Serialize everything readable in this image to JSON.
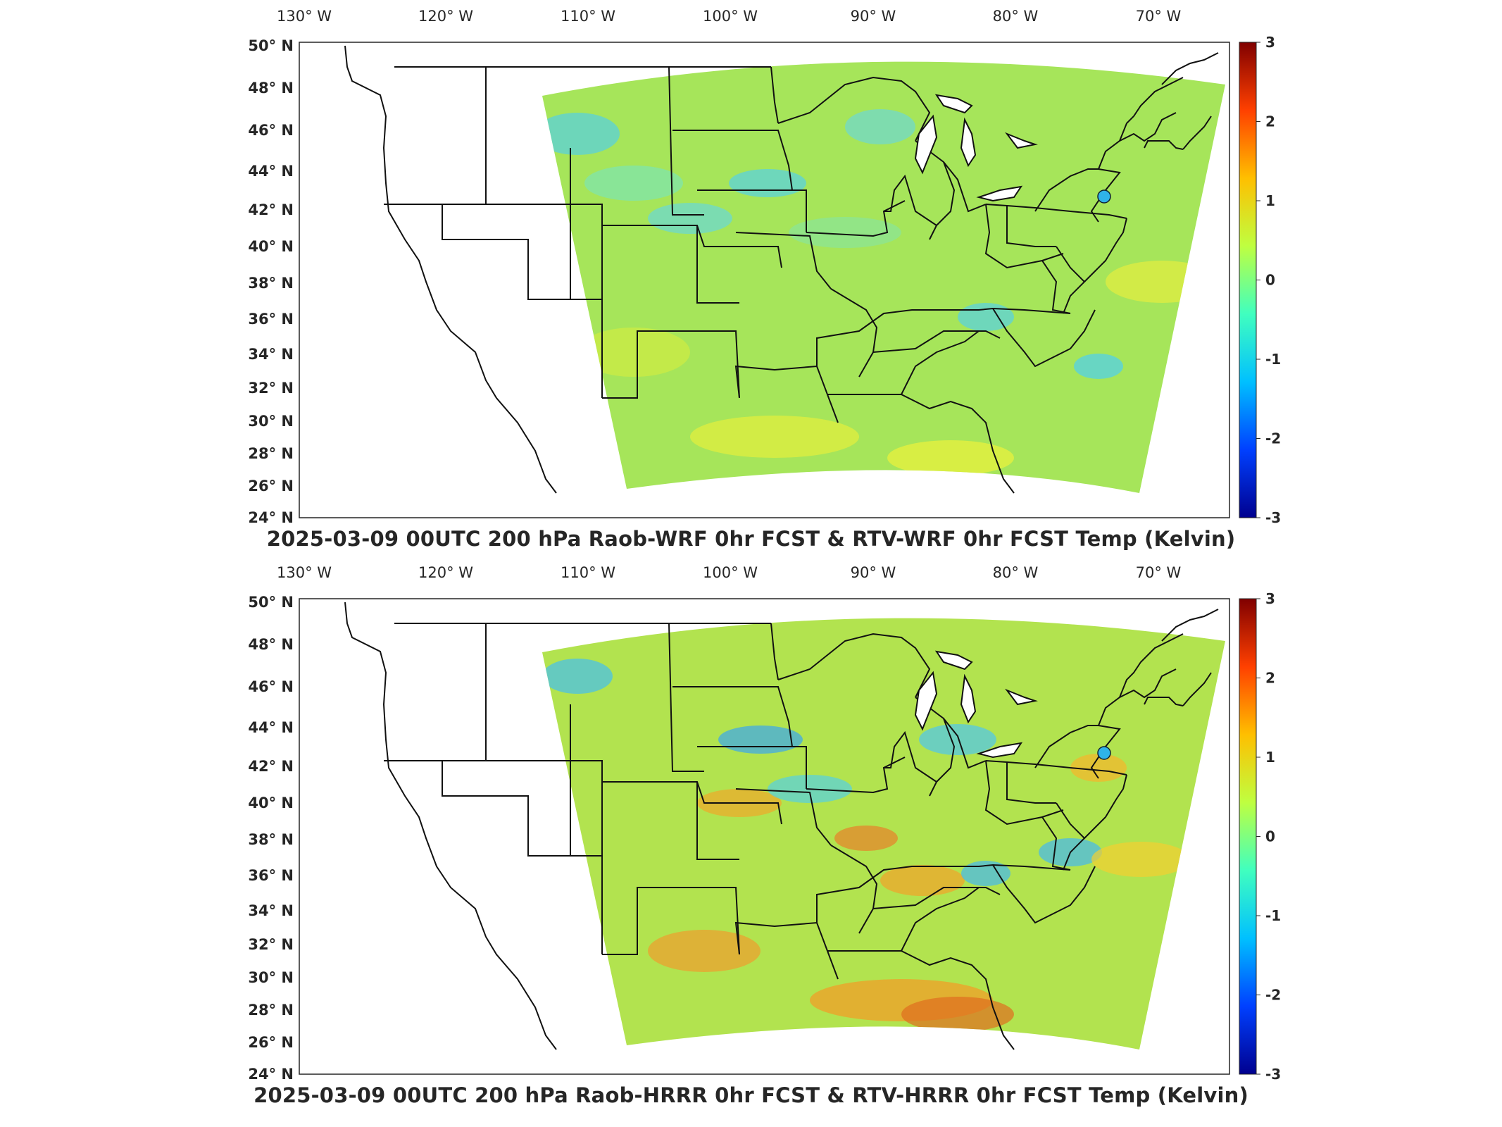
{
  "colorbar": {
    "ticks": [
      "3",
      "2",
      "1",
      "0",
      "-1",
      "-2",
      "-3"
    ],
    "colors": [
      "#00008f",
      "#0040ff",
      "#00c0ff",
      "#40ffbf",
      "#bfff40",
      "#ffbf00",
      "#ff4000",
      "#800000"
    ]
  },
  "lon_labels": [
    "130",
    "120",
    "110",
    "100",
    "90",
    "80",
    "70"
  ],
  "lon_suffix": "W",
  "lat_labels": [
    "50",
    "48",
    "46",
    "44",
    "42",
    "40",
    "38",
    "36",
    "34",
    "32",
    "30",
    "28",
    "26",
    "24"
  ],
  "lat_suffix": "N",
  "degree_mark": "°",
  "panels": [
    {
      "title": "2025-03-09 00UTC 200 hPa Raob-WRF 0hr FCST & RTV-WRF 0hr FCST Temp (Kelvin)",
      "field_base": "#a6e55a",
      "station_color": "#2fb3e8"
    },
    {
      "title": "2025-03-09 00UTC 200 hPa Raob-HRRR 0hr FCST & RTV-HRRR 0hr FCST Temp (Kelvin)",
      "field_base": "#b2e34f",
      "station_color": "#2fb3e8"
    }
  ]
}
